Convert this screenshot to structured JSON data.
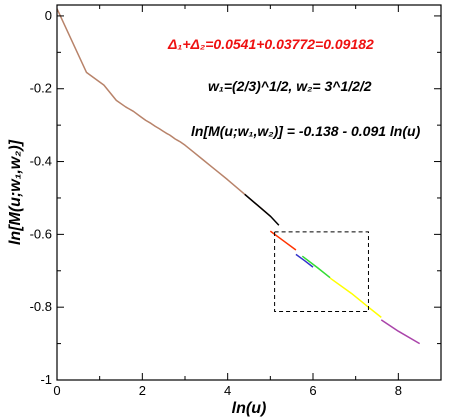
{
  "chart_data": {
    "type": "line",
    "title": "",
    "xlabel": "ln(u)",
    "ylabel": "ln[M(u;w₁,w₂)]",
    "xlim": [
      0,
      9
    ],
    "ylim": [
      -1,
      0.03
    ],
    "x_ticks": [
      0,
      2,
      4,
      6,
      8
    ],
    "x_tick_labels": [
      "0",
      "2",
      "4",
      "6",
      "8"
    ],
    "y_ticks": [
      0,
      -0.2,
      -0.4,
      -0.6,
      -0.8,
      -1
    ],
    "y_tick_labels": [
      "0",
      "-0.2",
      "-0.4",
      "-0.6",
      "-0.8",
      "-1"
    ],
    "grid": false,
    "annotations": {
      "delta_sum": "Δ₁+Δ₂=0.0541+0.03772=0.09182",
      "delta_sum_color": "#ee1111",
      "weights": "w₁=(2/3)^1/2, w₂= 3^1/2/2",
      "fit": "ln[M(u;w₁,w₂)] = -0.138 - 0.091 ln(u)"
    },
    "highlight_box": {
      "x_range": [
        5.1,
        7.3
      ],
      "y_range": [
        -0.812,
        -0.593
      ],
      "style": "dashed"
    },
    "series": [
      {
        "color": "#b8836a",
        "x": [
          0,
          0.69,
          1.1,
          1.39,
          1.61,
          1.79,
          1.95,
          2.08,
          2.2,
          2.3,
          2.4,
          2.48,
          2.56,
          2.64,
          2.71,
          2.77,
          2.83,
          2.89,
          2.94,
          3.0,
          3.2,
          3.4,
          3.6,
          3.8,
          4.0,
          4.2,
          4.4,
          4.6,
          4.8,
          5.0
        ],
        "y": [
          0.02,
          -0.155,
          -0.19,
          -0.232,
          -0.25,
          -0.262,
          -0.276,
          -0.287,
          -0.295,
          -0.303,
          -0.31,
          -0.316,
          -0.322,
          -0.327,
          -0.333,
          -0.338,
          -0.342,
          -0.346,
          -0.35,
          -0.355,
          -0.374,
          -0.393,
          -0.412,
          -0.431,
          -0.45,
          -0.47,
          -0.49,
          -0.51,
          -0.53,
          -0.55
        ]
      },
      {
        "color": "#000000",
        "x": [
          4.4,
          4.7,
          5.0,
          5.2
        ],
        "y": [
          -0.49,
          -0.52,
          -0.55,
          -0.575
        ]
      },
      {
        "color": "#ff3300",
        "x": [
          5.0,
          5.3,
          5.6
        ],
        "y": [
          -0.591,
          -0.617,
          -0.643
        ]
      },
      {
        "color": "#3333cc",
        "x": [
          5.6,
          5.8,
          6.0
        ],
        "y": [
          -0.655,
          -0.672,
          -0.69
        ]
      },
      {
        "color": "#33dd33",
        "x": [
          5.75,
          6.1,
          6.4
        ],
        "y": [
          -0.66,
          -0.691,
          -0.719
        ]
      },
      {
        "color": "#ffff00",
        "x": [
          6.4,
          6.9,
          7.3,
          7.6
        ],
        "y": [
          -0.72,
          -0.762,
          -0.8,
          -0.828
        ]
      },
      {
        "color": "#aa44aa",
        "x": [
          7.6,
          8.0,
          8.5
        ],
        "y": [
          -0.835,
          -0.866,
          -0.9
        ]
      }
    ]
  }
}
